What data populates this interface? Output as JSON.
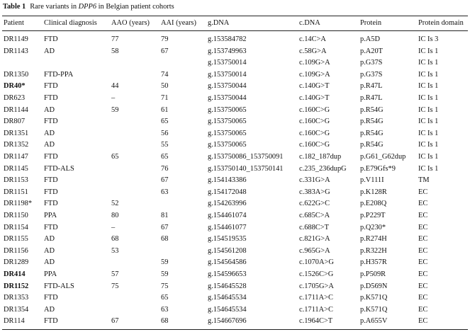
{
  "table": {
    "label": "Table 1",
    "caption": [
      "Rare variants in ",
      "DPP6",
      " in Belgian patient cohorts"
    ],
    "header": [
      "Patient",
      "Clinical diagnosis",
      "AAO (years)",
      "AAI (years)",
      "g.DNA",
      "c.DNA",
      "Protein",
      "Protein domain"
    ],
    "rows": [
      [
        "DR1149",
        "FTD",
        "77",
        "79",
        "g.153584782",
        "c.14C>A",
        "p.A5D",
        "IC Is 3"
      ],
      [
        "DR1143",
        "AD",
        "58",
        "67",
        "g.153749963",
        "c.58G>A",
        "p.A20T",
        "IC Is 1"
      ],
      [
        null,
        null,
        null,
        null,
        "g.153750014",
        "c.109G>A",
        "p.G37S",
        "IC Is 1"
      ],
      [
        "DR1350",
        "FTD-PPA",
        null,
        "74",
        "g.153750014",
        "c.109G>A",
        "p.G37S",
        "IC Is 1"
      ],
      [
        "DR40*",
        "FTD",
        "44",
        "50",
        "g.153750044",
        "c.140G>T",
        "p.R47L",
        "IC Is 1"
      ],
      [
        "DR623",
        "FTD",
        "–",
        "71",
        "g.153750044",
        "c.140G>T",
        "p.R47L",
        "IC Is 1"
      ],
      [
        "DR1144",
        "AD",
        "59",
        "61",
        "g.153750065",
        "c.160C>G",
        "p.R54G",
        "IC Is 1"
      ],
      [
        "DR807",
        "FTD",
        null,
        "65",
        "g.153750065",
        "c.160C>G",
        "p.R54G",
        "IC Is 1"
      ],
      [
        "DR1351",
        "AD",
        null,
        "56",
        "g.153750065",
        "c.160C>G",
        "p.R54G",
        "IC Is 1"
      ],
      [
        "DR1352",
        "AD",
        null,
        "55",
        "g.153750065",
        "c.160C>G",
        "p.R54G",
        "IC Is 1"
      ],
      [
        "DR1147",
        "FTD",
        "65",
        "65",
        "g.153750086_153750091",
        "c.182_187dup",
        "p.G61_G62dup",
        "IC Is 1"
      ],
      [
        "DR1145",
        "FTD-ALS",
        null,
        "76",
        "g.153750140_153750141",
        "c.235_236dupG",
        "p.E79Gfs*9",
        "IC Is 1"
      ],
      [
        "DR1153",
        "FTD",
        null,
        "67",
        "g.154143386",
        "c.331G>A",
        "p.V111I",
        "TM"
      ],
      [
        "DR1151",
        "FTD",
        null,
        "63",
        "g.154172048",
        "c.383A>G",
        "p.K128R",
        "EC"
      ],
      [
        "DR1198*",
        "FTD",
        "52",
        null,
        "g.154263996",
        "c.622G>C",
        "p.E208Q",
        "EC"
      ],
      [
        "DR1150",
        "PPA",
        "80",
        "81",
        "g.154461074",
        "c.685C>A",
        "p.P229T",
        "EC"
      ],
      [
        "DR1154",
        "FTD",
        "–",
        "67",
        "g.154461077",
        "c.688C>T",
        "p.Q230*",
        "EC"
      ],
      [
        "DR1155",
        "AD",
        "68",
        "68",
        "g.154519535",
        "c.821G>A",
        "p.R274H",
        "EC"
      ],
      [
        "DR1156",
        "AD",
        "53",
        null,
        "g.154561208",
        "c.965G>A",
        "p.R322H",
        "EC"
      ],
      [
        "DR1289",
        "AD",
        null,
        "59",
        "g.154564586",
        "c.1070A>G",
        "p.H357R",
        "EC"
      ],
      [
        "DR414",
        "PPA",
        "57",
        "59",
        "g.154596653",
        "c.1526C>G",
        "p.P509R",
        "EC"
      ],
      [
        "DR1152",
        "FTD-ALS",
        "75",
        "75",
        "g.154645528",
        "c.1705G>A",
        "p.D569N",
        "EC"
      ],
      [
        "DR1353",
        "FTD",
        null,
        "65",
        "g.154645534",
        "c.1711A>C",
        "p.K571Q",
        "EC"
      ],
      [
        "DR1354",
        "AD",
        null,
        "63",
        "g.154645534",
        "c.1711A>C",
        "p.K571Q",
        "EC"
      ],
      [
        "DR114",
        "FTD",
        "67",
        "68",
        "g.154667696",
        "c.1964C>T",
        "p.A655V",
        "EC"
      ]
    ],
    "bold_rows": [
      4,
      20,
      21
    ]
  }
}
